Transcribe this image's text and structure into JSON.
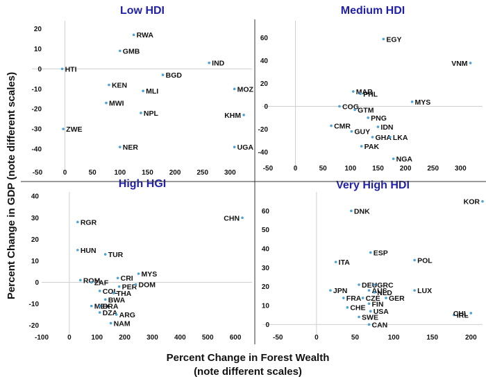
{
  "ylabel": "Percent Change in GDP (note different scales)",
  "xlabel_line1": "Percent Change in Forest Wealth",
  "xlabel_line2": "(note different scales)",
  "chart_data": [
    {
      "type": "scatter",
      "title": "Low HDI",
      "xlim": [
        -60,
        340
      ],
      "ylim": [
        -50,
        24
      ],
      "xticks": [
        -50,
        0,
        50,
        100,
        150,
        200,
        250,
        300
      ],
      "yticks": [
        20,
        10,
        0,
        -10,
        -20,
        -30,
        -40
      ],
      "points": [
        {
          "label": "RWA",
          "x": 125,
          "y": 17
        },
        {
          "label": "GMB",
          "x": 100,
          "y": 9
        },
        {
          "label": "HTI",
          "x": -5,
          "y": 0
        },
        {
          "label": "IND",
          "x": 262,
          "y": 3
        },
        {
          "label": "BGD",
          "x": 178,
          "y": -3
        },
        {
          "label": "KEN",
          "x": 80,
          "y": -8
        },
        {
          "label": "MLI",
          "x": 142,
          "y": -11
        },
        {
          "label": "MOZ",
          "x": 308,
          "y": -10
        },
        {
          "label": "MWI",
          "x": 75,
          "y": -17
        },
        {
          "label": "NPL",
          "x": 138,
          "y": -22
        },
        {
          "label": "KHM",
          "x": 325,
          "y": -23
        },
        {
          "label": "ZWE",
          "x": -3,
          "y": -30
        },
        {
          "label": "NER",
          "x": 100,
          "y": -39
        },
        {
          "label": "UGA",
          "x": 308,
          "y": -39
        }
      ]
    },
    {
      "type": "scatter",
      "title": "Medium HDI",
      "xlim": [
        -60,
        340
      ],
      "ylim": [
        -55,
        75
      ],
      "xticks": [
        -50,
        0,
        50,
        100,
        150,
        200,
        250,
        300
      ],
      "yticks": [
        60,
        40,
        20,
        0,
        -20,
        -40
      ],
      "points": [
        {
          "label": "EGY",
          "x": 160,
          "y": 59
        },
        {
          "label": "VNM",
          "x": 318,
          "y": 38
        },
        {
          "label": "MAR",
          "x": 105,
          "y": 13
        },
        {
          "label": "PHL",
          "x": 118,
          "y": 11
        },
        {
          "label": "MYS",
          "x": 212,
          "y": 4
        },
        {
          "label": "COG",
          "x": 80,
          "y": 0
        },
        {
          "label": "GTM",
          "x": 108,
          "y": -3
        },
        {
          "label": "PNG",
          "x": 132,
          "y": -10
        },
        {
          "label": "CMR",
          "x": 65,
          "y": -17
        },
        {
          "label": "IDN",
          "x": 150,
          "y": -18
        },
        {
          "label": "GUY",
          "x": 102,
          "y": -22
        },
        {
          "label": "GHA",
          "x": 140,
          "y": -27
        },
        {
          "label": "LKA",
          "x": 172,
          "y": -27
        },
        {
          "label": "PAK",
          "x": 120,
          "y": -35
        },
        {
          "label": "NGA",
          "x": 178,
          "y": -46
        }
      ]
    },
    {
      "type": "scatter",
      "title": "High HGI",
      "xlim": [
        -100,
        660
      ],
      "ylim": [
        -24,
        42
      ],
      "xticks": [
        -100,
        0,
        100,
        200,
        300,
        400,
        500,
        600
      ],
      "yticks": [
        40,
        30,
        20,
        10,
        0,
        -10,
        -20
      ],
      "points": [
        {
          "label": "CHN",
          "x": 625,
          "y": 30
        },
        {
          "label": "RGR",
          "x": 30,
          "y": 28
        },
        {
          "label": "HUN",
          "x": 30,
          "y": 15
        },
        {
          "label": "TUR",
          "x": 130,
          "y": 13
        },
        {
          "label": "MYS",
          "x": 250,
          "y": 4
        },
        {
          "label": "ROM",
          "x": 40,
          "y": 1
        },
        {
          "label": "CRI",
          "x": 175,
          "y": 2
        },
        {
          "label": "ZAF",
          "x": 80,
          "y": 0
        },
        {
          "label": "PER",
          "x": 180,
          "y": -2
        },
        {
          "label": "DOM",
          "x": 240,
          "y": -1
        },
        {
          "label": "COL",
          "x": 110,
          "y": -4
        },
        {
          "label": "THA",
          "x": 160,
          "y": -5
        },
        {
          "label": "BWA",
          "x": 130,
          "y": -8
        },
        {
          "label": "MEX",
          "x": 80,
          "y": -11
        },
        {
          "label": "BRA",
          "x": 110,
          "y": -11
        },
        {
          "label": "DZA",
          "x": 110,
          "y": -14
        },
        {
          "label": "ARG",
          "x": 170,
          "y": -15
        },
        {
          "label": "NAM",
          "x": 150,
          "y": -19
        }
      ]
    },
    {
      "type": "scatter",
      "title": "Very High HDI",
      "xlim": [
        -70,
        215
      ],
      "ylim": [
        -5,
        70
      ],
      "xticks": [
        -50,
        0,
        50,
        100,
        150,
        200
      ],
      "yticks": [
        60,
        50,
        40,
        30,
        20,
        10,
        0
      ],
      "points": [
        {
          "label": "KOR",
          "x": 215,
          "y": 65
        },
        {
          "label": "DNK",
          "x": 45,
          "y": 60
        },
        {
          "label": "ESP",
          "x": 70,
          "y": 38
        },
        {
          "label": "POL",
          "x": 127,
          "y": 34
        },
        {
          "label": "ITA",
          "x": 25,
          "y": 33
        },
        {
          "label": "DEU",
          "x": 55,
          "y": 21
        },
        {
          "label": "GRC",
          "x": 75,
          "y": 21
        },
        {
          "label": "JPN",
          "x": 18,
          "y": 18
        },
        {
          "label": "AUS",
          "x": 68,
          "y": 18
        },
        {
          "label": "NLD",
          "x": 75,
          "y": 17
        },
        {
          "label": "LUX",
          "x": 127,
          "y": 18
        },
        {
          "label": "FRA",
          "x": 35,
          "y": 14
        },
        {
          "label": "CZE",
          "x": 60,
          "y": 14
        },
        {
          "label": "GER",
          "x": 90,
          "y": 14
        },
        {
          "label": "FIN",
          "x": 68,
          "y": 11
        },
        {
          "label": "CHE",
          "x": 40,
          "y": 9
        },
        {
          "label": "USA",
          "x": 70,
          "y": 7
        },
        {
          "label": "SWE",
          "x": 55,
          "y": 4
        },
        {
          "label": "IRL",
          "x": 178,
          "y": 5
        },
        {
          "label": "CHL",
          "x": 200,
          "y": 6
        },
        {
          "label": "CAN",
          "x": 68,
          "y": 0
        }
      ]
    }
  ]
}
